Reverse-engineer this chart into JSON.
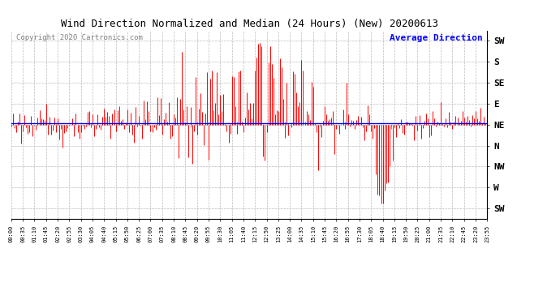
{
  "title": "Wind Direction Normalized and Median (24 Hours) (New) 20200613",
  "copyright": "Copyright 2020 Cartronics.com",
  "legend_label": "Average Direction",
  "title_fontsize": 9,
  "background_color": "#ffffff",
  "ytick_labels_right": [
    "SW",
    "S",
    "SE",
    "E",
    "NE",
    "N",
    "NW",
    "W",
    "SW"
  ],
  "ytick_values": [
    4,
    3,
    2,
    1,
    0,
    -1,
    -2,
    -3,
    -4
  ],
  "avg_direction_value": 0.07,
  "grid_color": "#bbbbbb",
  "line_color_red": "#ff0000",
  "line_color_dark": "#333333",
  "figsize": [
    6.9,
    3.75
  ],
  "dpi": 100
}
